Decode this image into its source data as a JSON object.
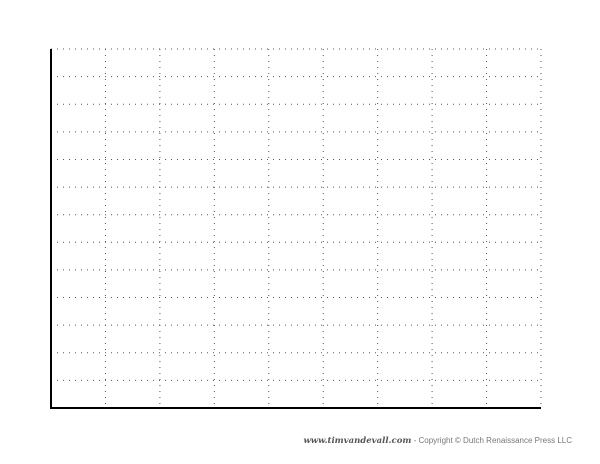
{
  "chart_data": {
    "type": "line",
    "title": "",
    "xlabel": "",
    "ylabel": "",
    "grid": true,
    "grid_style": "dotted",
    "x_gridlines": 9,
    "y_gridlines": 13,
    "series": []
  },
  "footer": {
    "site": "www.timvandevall.com",
    "separator": " - ",
    "copyright": "Copyright © Dutch Renaissance Press LLC"
  },
  "colors": {
    "axis": "#000000",
    "grid": "#555555",
    "background": "#ffffff",
    "footer_text": "#777777"
  }
}
